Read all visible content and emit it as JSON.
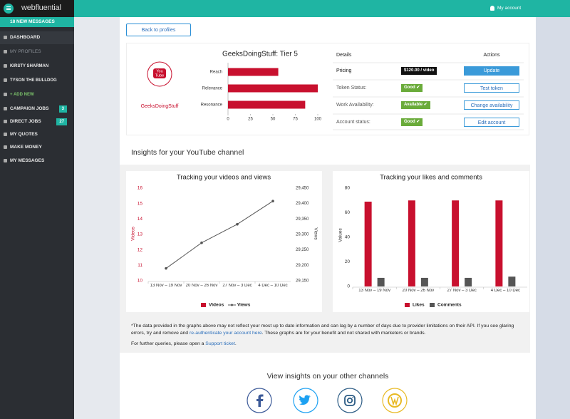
{
  "header": {
    "logo": "webfluential",
    "account": "My account"
  },
  "sidebar": {
    "messages": "18 NEW MESSAGES",
    "items": [
      {
        "label": "DASHBOARD"
      },
      {
        "label": "MY PROFILES"
      },
      {
        "label": "KIRSTY SHARMAN"
      },
      {
        "label": "TYSON THE BULLDOG"
      },
      {
        "label": "+ ADD NEW"
      },
      {
        "label": "CAMPAIGN JOBS",
        "badge": "3"
      },
      {
        "label": "DIRECT JOBS",
        "badge": "27"
      },
      {
        "label": "MY QUOTES"
      },
      {
        "label": "MAKE MONEY"
      },
      {
        "label": "MY MESSAGES"
      }
    ]
  },
  "back_button": "Back to profiles",
  "profile": {
    "icon_label": [
      "You",
      "Tube"
    ],
    "name": "GeeksDoingStuff"
  },
  "profile_chart": {
    "type": "bar",
    "orientation": "horizontal",
    "title": "GeeksDoingStuff: Tier 5",
    "categories": [
      "Reach",
      "Relevance",
      "Resonance"
    ],
    "values": [
      56,
      100,
      86
    ],
    "color": "#c8102e",
    "xlim": [
      0,
      100
    ],
    "xticks": [
      0,
      25,
      50,
      75,
      100
    ]
  },
  "details": {
    "header": [
      "Details",
      "Actions"
    ],
    "rows": [
      {
        "label": "Pricing",
        "status": "$120.00 / video",
        "action": "Update"
      },
      {
        "label": "Token Status:",
        "status": "Good",
        "action": "Test token"
      },
      {
        "label": "Work Availability:",
        "status": "Available",
        "action": "Change availability"
      },
      {
        "label": "Account status:",
        "status": "Good",
        "action": "Edit account"
      }
    ]
  },
  "insights_title": "Insights for your YouTube channel",
  "videos_chart": {
    "type": "line",
    "title": "Tracking your videos and views",
    "categories": [
      "13 Nov – 19 Nov",
      "20 Nov – 26 Nov",
      "27 Nov – 3 Dec",
      "4 Dec – 10 Dec"
    ],
    "y_label": "Videos",
    "y2_label": "Views",
    "ylim": [
      10,
      16
    ],
    "yticks": [
      10,
      11,
      12,
      13,
      14,
      15,
      16
    ],
    "y2lim": [
      29150,
      29450
    ],
    "y2ticks": [
      {
        "value": 29150,
        "label": "29,150"
      },
      {
        "value": 29200,
        "label": "29,200"
      },
      {
        "value": 29250,
        "label": "29,250"
      },
      {
        "value": 29300,
        "label": "29,300"
      },
      {
        "value": 29350,
        "label": "29,350"
      },
      {
        "value": 29400,
        "label": "29,400"
      },
      {
        "value": 29450,
        "label": "29,450"
      }
    ],
    "series": [
      {
        "name": "Videos",
        "color": "#c8102e",
        "values": [
          null,
          null,
          null,
          null
        ]
      },
      {
        "name": "Views",
        "color": "#555555",
        "axis": "y2",
        "values": [
          29190,
          29273,
          29333,
          29408
        ]
      }
    ]
  },
  "likes_chart": {
    "type": "bar",
    "title": "Tracking your likes and comments",
    "categories": [
      "13 Nov – 19 Nov",
      "20 Nov – 26 Nov",
      "27 Nov – 3 Dec",
      "4 Dec – 10 Dec"
    ],
    "y_label": "Values",
    "ylim": [
      0,
      80
    ],
    "yticks": [
      0,
      20,
      40,
      60,
      80
    ],
    "series": [
      {
        "name": "Likes",
        "color": "#c8102e",
        "values": [
          69,
          70,
          70,
          70
        ]
      },
      {
        "name": "Comments",
        "color": "#555555",
        "values": [
          7,
          7,
          7,
          8
        ]
      }
    ]
  },
  "notes": [
    {
      "parts": [
        "*The data provided in the graphs above may not reflect your most up to date information and can lag by a number of days due to provider limitations on their API. If you see glaring errors, try and remove and ",
        "re-authenticate your account here",
        ". These graphs are for your benefit and not shared with marketers or brands."
      ]
    },
    {
      "parts": [
        "For further queries, please open a ",
        "Support ticket",
        "."
      ]
    }
  ],
  "other_channels": "View insights on your other channels"
}
